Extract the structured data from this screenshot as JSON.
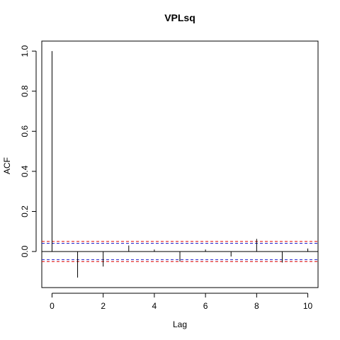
{
  "chart_data": {
    "type": "bar",
    "title": "VPLsq",
    "xlabel": "Lag",
    "ylabel": "ACF",
    "x": [
      0,
      1,
      2,
      3,
      4,
      5,
      6,
      7,
      8,
      9,
      10
    ],
    "values": [
      1.0,
      -0.13,
      -0.075,
      0.03,
      0.01,
      -0.05,
      0.01,
      -0.025,
      0.063,
      -0.055,
      0.015
    ],
    "xlim": [
      -0.4,
      10.4
    ],
    "ylim": [
      -0.18,
      1.05
    ],
    "x_ticks": [
      0,
      2,
      4,
      6,
      8,
      10
    ],
    "y_ticks": [
      0.0,
      0.2,
      0.4,
      0.6,
      0.8,
      1.0
    ],
    "confidence_bounds": [
      {
        "upper": 0.05,
        "lower": -0.05,
        "color": "#dd0000",
        "style": "dashed"
      },
      {
        "upper": 0.041,
        "lower": -0.041,
        "color": "#2222cc",
        "style": "dashed"
      }
    ],
    "zero_line": true,
    "grid": false,
    "legend": "none"
  }
}
